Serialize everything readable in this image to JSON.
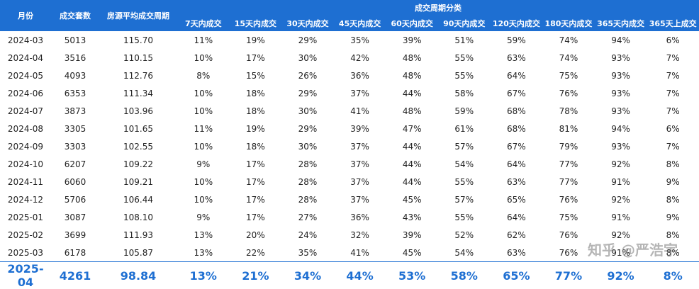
{
  "table": {
    "headers": [
      "月份",
      "成交套数",
      "房源平均成交周期"
    ],
    "group_header": "成交周期分类",
    "sub_headers": [
      "7天内成交",
      "15天内成交",
      "30天内成交",
      "45天内成交",
      "60天内成交",
      "90天内成交",
      "120天内成交",
      "180天内成交",
      "365天内成交",
      "365天上成交"
    ],
    "rows": [
      [
        "2024-03",
        "5013",
        "115.70",
        "11%",
        "19%",
        "29%",
        "35%",
        "39%",
        "51%",
        "59%",
        "74%",
        "94%",
        "6%"
      ],
      [
        "2024-04",
        "3516",
        "110.15",
        "10%",
        "17%",
        "30%",
        "42%",
        "48%",
        "55%",
        "63%",
        "74%",
        "93%",
        "7%"
      ],
      [
        "2024-05",
        "4093",
        "112.76",
        "8%",
        "15%",
        "26%",
        "36%",
        "48%",
        "55%",
        "64%",
        "75%",
        "93%",
        "7%"
      ],
      [
        "2024-06",
        "6353",
        "111.34",
        "10%",
        "18%",
        "29%",
        "37%",
        "44%",
        "58%",
        "67%",
        "76%",
        "93%",
        "7%"
      ],
      [
        "2024-07",
        "3873",
        "103.96",
        "10%",
        "18%",
        "30%",
        "41%",
        "48%",
        "59%",
        "68%",
        "78%",
        "93%",
        "7%"
      ],
      [
        "2024-08",
        "3305",
        "101.65",
        "11%",
        "19%",
        "29%",
        "39%",
        "47%",
        "61%",
        "68%",
        "81%",
        "94%",
        "6%"
      ],
      [
        "2024-09",
        "3303",
        "102.55",
        "10%",
        "18%",
        "30%",
        "37%",
        "44%",
        "57%",
        "67%",
        "79%",
        "93%",
        "7%"
      ],
      [
        "2024-10",
        "6207",
        "109.22",
        "9%",
        "17%",
        "28%",
        "37%",
        "44%",
        "54%",
        "64%",
        "77%",
        "92%",
        "8%"
      ],
      [
        "2024-11",
        "6060",
        "109.21",
        "10%",
        "17%",
        "28%",
        "37%",
        "44%",
        "55%",
        "63%",
        "77%",
        "91%",
        "9%"
      ],
      [
        "2024-12",
        "5706",
        "106.44",
        "10%",
        "17%",
        "28%",
        "37%",
        "45%",
        "57%",
        "65%",
        "76%",
        "92%",
        "8%"
      ],
      [
        "2025-01",
        "3087",
        "108.10",
        "9%",
        "17%",
        "27%",
        "36%",
        "43%",
        "55%",
        "64%",
        "75%",
        "91%",
        "9%"
      ],
      [
        "2025-02",
        "3699",
        "111.93",
        "13%",
        "20%",
        "24%",
        "32%",
        "39%",
        "52%",
        "62%",
        "76%",
        "92%",
        "8%"
      ],
      [
        "2025-03",
        "6178",
        "105.87",
        "13%",
        "22%",
        "35%",
        "41%",
        "45%",
        "54%",
        "63%",
        "76%",
        "91%",
        "8%"
      ],
      [
        "2025-04",
        "4261",
        "98.84",
        "13%",
        "21%",
        "34%",
        "44%",
        "53%",
        "58%",
        "65%",
        "77%",
        "92%",
        "8%"
      ]
    ]
  },
  "watermark": "知乎 @严浩宇"
}
